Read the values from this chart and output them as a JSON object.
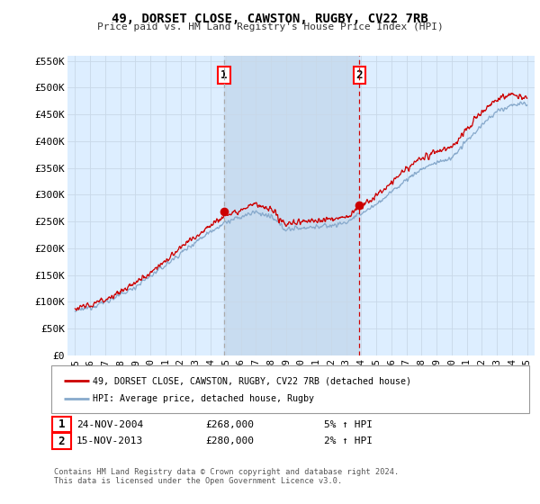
{
  "title": "49, DORSET CLOSE, CAWSTON, RUGBY, CV22 7RB",
  "subtitle": "Price paid vs. HM Land Registry's House Price Index (HPI)",
  "legend_line1": "49, DORSET CLOSE, CAWSTON, RUGBY, CV22 7RB (detached house)",
  "legend_line2": "HPI: Average price, detached house, Rugby",
  "footnote": "Contains HM Land Registry data © Crown copyright and database right 2024.\nThis data is licensed under the Open Government Licence v3.0.",
  "annotation1_date": "24-NOV-2004",
  "annotation1_price": "£268,000",
  "annotation1_hpi": "5% ↑ HPI",
  "annotation2_date": "15-NOV-2013",
  "annotation2_price": "£280,000",
  "annotation2_hpi": "2% ↑ HPI",
  "vline1_x": 2004.9,
  "vline2_x": 2013.88,
  "marker1_x": 2004.9,
  "marker1_y": 268000,
  "marker2_x": 2013.88,
  "marker2_y": 280000,
  "ylim": [
    0,
    560000
  ],
  "xlim": [
    1994.5,
    2025.5
  ],
  "background_color": "#ffffff",
  "plot_bg_color": "#ddeeff",
  "grid_color": "#c8d8e8",
  "line_red_color": "#cc0000",
  "line_blue_color": "#88aacc",
  "vline1_color": "#aaaaaa",
  "vline2_color": "#cc0000",
  "shade_color": "#c8dcf0",
  "yticks": [
    0,
    50000,
    100000,
    150000,
    200000,
    250000,
    300000,
    350000,
    400000,
    450000,
    500000,
    550000
  ],
  "ytick_labels": [
    "£0",
    "£50K",
    "£100K",
    "£150K",
    "£200K",
    "£250K",
    "£300K",
    "£350K",
    "£400K",
    "£450K",
    "£500K",
    "£550K"
  ],
  "xticks": [
    1995,
    1996,
    1997,
    1998,
    1999,
    2000,
    2001,
    2002,
    2003,
    2004,
    2005,
    2006,
    2007,
    2008,
    2009,
    2010,
    2011,
    2012,
    2013,
    2014,
    2015,
    2016,
    2017,
    2018,
    2019,
    2020,
    2021,
    2022,
    2023,
    2024,
    2025
  ]
}
